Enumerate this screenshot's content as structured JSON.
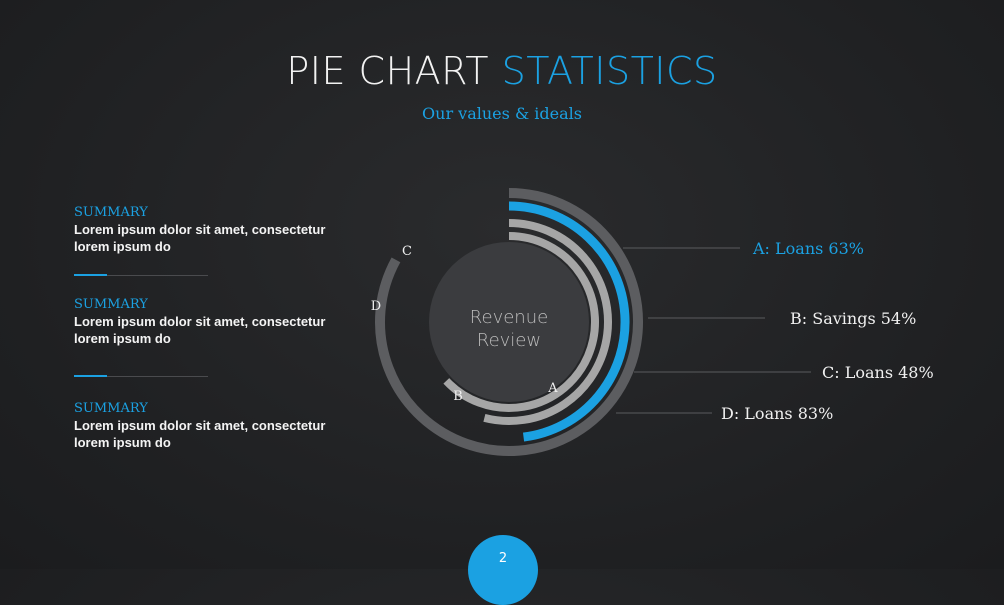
{
  "header": {
    "title_white": "PIE CHART",
    "title_blue": "STATISTICS",
    "subtitle": "Our values & ideals"
  },
  "summaries": [
    {
      "heading": "SUMMARY",
      "line1": "Lorem ipsum dolor sit amet, consectetur",
      "line2": "lorem ipsum do"
    },
    {
      "heading": "SUMMARY",
      "line1": "Lorem ipsum dolor sit amet, consectetur",
      "line2": "lorem ipsum do"
    },
    {
      "heading": "SUMMARY",
      "line1": "Lorem ipsum dolor sit amet, consectetur",
      "line2": "lorem ipsum do"
    }
  ],
  "chart_data": {
    "type": "pie",
    "center_label": [
      "Revenue",
      "Review"
    ],
    "series": [
      {
        "name": "A",
        "label": "A: Loans 63%",
        "value": 63,
        "color": "#a6a6a6"
      },
      {
        "name": "B",
        "label": "B: Savings 54%",
        "value": 54,
        "color": "#a6a6a6"
      },
      {
        "name": "C",
        "label": "C: Loans 48%",
        "value": 48,
        "color": "#1ba1e2"
      },
      {
        "name": "D",
        "label": "D: Loans 83%",
        "value": 83,
        "color": "#5c5d60"
      }
    ],
    "highlight_color": "#1ba1e2",
    "label_color": "#f0f0f0"
  },
  "footer": {
    "page_number": "2"
  }
}
